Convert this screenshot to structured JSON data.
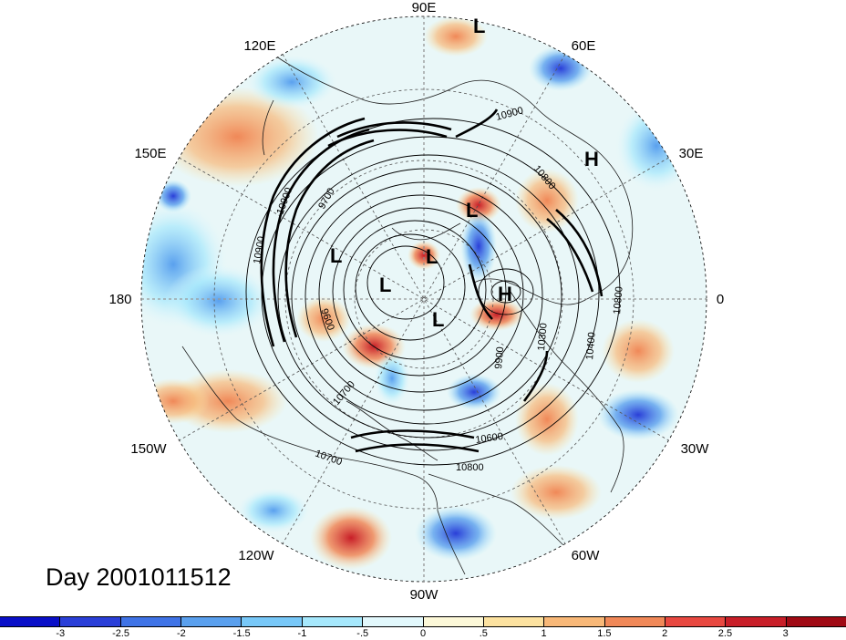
{
  "title": "Day 2001011512",
  "longitude_labels": [
    {
      "text": "90E",
      "angle": 90
    },
    {
      "text": "60E",
      "angle": 60
    },
    {
      "text": "30E",
      "angle": 30
    },
    {
      "text": "0",
      "angle": 0
    },
    {
      "text": "30W",
      "angle": -30
    },
    {
      "text": "60W",
      "angle": -60
    },
    {
      "text": "90W",
      "angle": -90
    },
    {
      "text": "120W",
      "angle": -120
    },
    {
      "text": "150W",
      "angle": -150
    },
    {
      "text": "180",
      "angle": 180
    },
    {
      "text": "150E",
      "angle": 150
    },
    {
      "text": "120E",
      "angle": 120
    }
  ],
  "pressure_centers": [
    {
      "type": "L",
      "text": "L"
    },
    {
      "type": "H",
      "text": "H"
    },
    {
      "type": "L",
      "text": "L"
    },
    {
      "type": "L",
      "text": "L"
    },
    {
      "type": "L",
      "text": "L"
    },
    {
      "type": "L",
      "text": "L"
    },
    {
      "type": "H",
      "text": "H"
    },
    {
      "type": "L",
      "text": "L"
    }
  ],
  "contour_labels": [
    "10900",
    "10800",
    "10900",
    "10800",
    "10400",
    "10300",
    "9900",
    "10600",
    "10800",
    "10700",
    "10900",
    "9600",
    "9700",
    "10700"
  ],
  "colorbar": {
    "ticks": [
      "-3",
      "-2.5",
      "-2",
      "-1.5",
      "-1",
      "-.5",
      "0",
      ".5",
      "1",
      "1.5",
      "2",
      "2.5",
      "3"
    ],
    "colors": [
      "#0a0fc8",
      "#2a3fd8",
      "#3f73e6",
      "#5aa0ee",
      "#78c8f8",
      "#a6e8fc",
      "#e2f8fc",
      "#fcf8d8",
      "#fce2a0",
      "#f8b878",
      "#f08858",
      "#e84840",
      "#c81e28",
      "#a00a14"
    ]
  },
  "colors": {
    "coast": "#1a1a1a",
    "contour": "#000000",
    "graticule": "#555555"
  }
}
